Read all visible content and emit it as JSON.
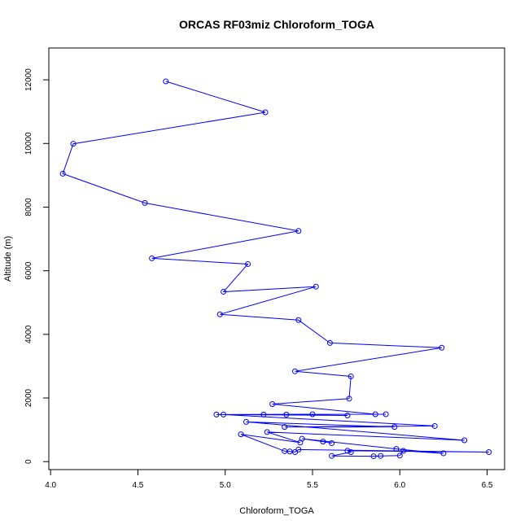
{
  "chart_data": {
    "type": "line",
    "title": "ORCAS RF03miz Chloroform_TOGA",
    "xlabel": "Chloroform_TOGA",
    "ylabel": "Altitude (m)",
    "xlim": [
      3.99,
      6.6
    ],
    "ylim": [
      -250,
      13000
    ],
    "xticks": [
      "4.0",
      "4.5",
      "5.0",
      "5.5",
      "6.0",
      "6.5"
    ],
    "yticks": [
      "0",
      "2000",
      "4000",
      "6000",
      "8000",
      "10000",
      "12000"
    ],
    "grid": false,
    "color": "#0000ff",
    "series": [
      {
        "name": "Chloroform_TOGA",
        "points": [
          [
            4.66,
            11950
          ],
          [
            5.23,
            10980
          ],
          [
            4.13,
            9990
          ],
          [
            4.07,
            9050
          ],
          [
            4.54,
            8130
          ],
          [
            5.42,
            7250
          ],
          [
            4.58,
            6390
          ],
          [
            5.13,
            6210
          ],
          [
            4.99,
            5340
          ],
          [
            5.52,
            5500
          ],
          [
            4.97,
            4630
          ],
          [
            5.42,
            4450
          ],
          [
            5.6,
            3730
          ],
          [
            6.24,
            3580
          ],
          [
            5.4,
            2840
          ],
          [
            5.72,
            2680
          ],
          [
            5.71,
            1980
          ],
          [
            5.27,
            1810
          ],
          [
            5.86,
            1490
          ],
          [
            5.92,
            1490
          ],
          [
            4.95,
            1480
          ],
          [
            5.5,
            1490
          ],
          [
            5.22,
            1480
          ],
          [
            5.35,
            1480
          ],
          [
            5.7,
            1450
          ],
          [
            4.99,
            1480
          ],
          [
            6.2,
            1120
          ],
          [
            5.34,
            1090
          ],
          [
            5.97,
            1090
          ],
          [
            5.12,
            1250
          ],
          [
            6.37,
            670
          ],
          [
            5.24,
            930
          ],
          [
            5.43,
            600
          ],
          [
            5.09,
            860
          ],
          [
            5.34,
            330
          ],
          [
            5.37,
            320
          ],
          [
            5.4,
            300
          ],
          [
            5.42,
            380
          ],
          [
            6.51,
            300
          ],
          [
            5.7,
            340
          ],
          [
            5.72,
            300
          ],
          [
            5.61,
            180
          ],
          [
            5.85,
            170
          ],
          [
            5.89,
            180
          ],
          [
            6.0,
            190
          ],
          [
            6.02,
            340
          ],
          [
            6.25,
            260
          ],
          [
            5.98,
            400
          ],
          [
            5.44,
            720
          ],
          [
            5.56,
            630
          ],
          [
            5.61,
            580
          ]
        ]
      }
    ]
  }
}
